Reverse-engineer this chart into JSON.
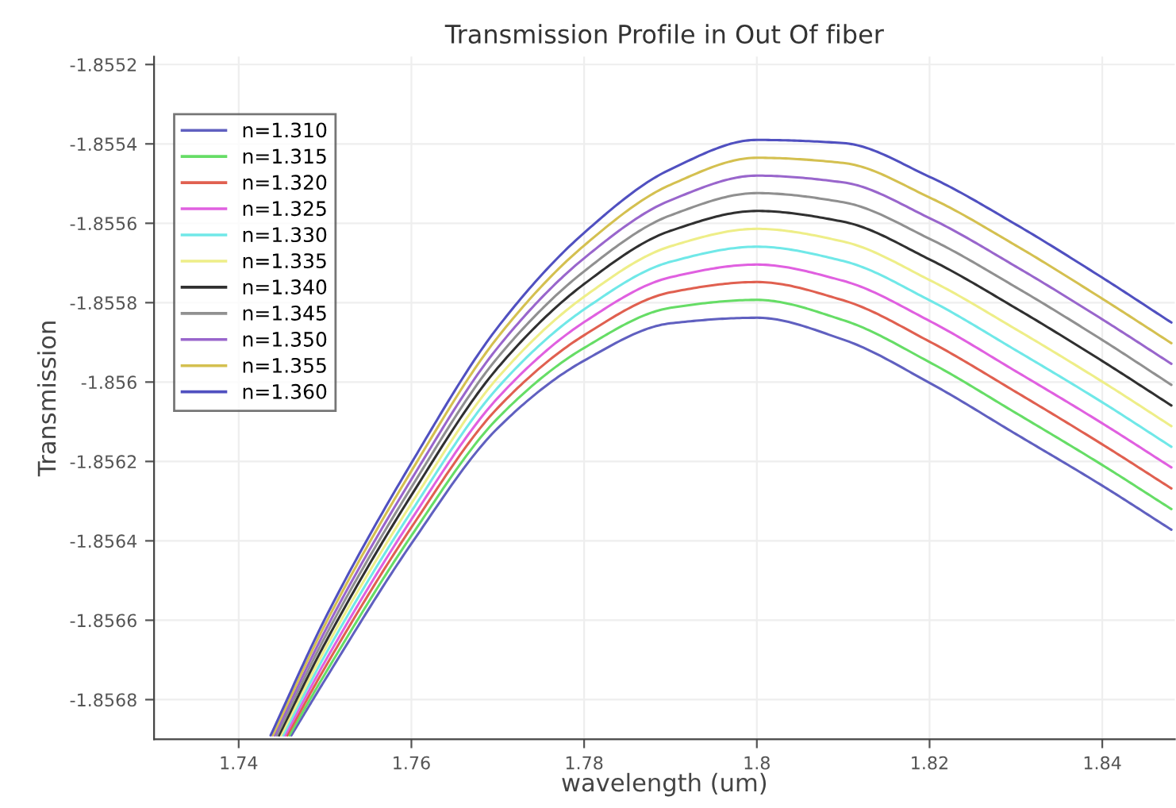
{
  "chart_data": {
    "type": "line",
    "title": "Transmission Profile in Out Of fiber",
    "xlabel": "wavelength (um)",
    "ylabel": "Transmission",
    "xlim": [
      1.7302,
      1.8484
    ],
    "xticks": [
      1.74,
      1.76,
      1.78,
      1.8,
      1.82,
      1.84
    ],
    "ylim": [
      -1.8569,
      -1.85518
    ],
    "yticks": [
      -1.8552,
      -1.8554,
      -1.8556,
      -1.8558,
      -1.856,
      -1.8562,
      -1.8564,
      -1.8566,
      -1.8568
    ],
    "grid": true,
    "legend": "top left",
    "line_style": "solid",
    "marker": "none",
    "series": [
      {
        "name": "n=1.310",
        "color": "#6060c0",
        "x": [
          1.7461,
          1.75,
          1.76,
          1.77,
          1.78,
          1.79,
          1.8,
          1.81,
          1.82,
          1.83,
          1.84,
          1.848
        ],
        "values": [
          -1.85689,
          -1.85675,
          -1.856407,
          -1.856116,
          -1.855946,
          -1.855852,
          -1.855838,
          -1.855893,
          -1.856002,
          -1.856131,
          -1.856261,
          -1.856372
        ]
      },
      {
        "name": "n=1.315",
        "color": "#66dd66",
        "x": [
          1.74586,
          1.75,
          1.76,
          1.77,
          1.78,
          1.79,
          1.8,
          1.81,
          1.82,
          1.83,
          1.84,
          1.848
        ],
        "values": [
          -1.85689,
          -1.856735,
          -1.856387,
          -1.856091,
          -1.855914,
          -1.855813,
          -1.855793,
          -1.855844,
          -1.85595,
          -1.856078,
          -1.856209,
          -1.85632
        ]
      },
      {
        "name": "n=1.320",
        "color": "#e06050",
        "x": [
          1.74562,
          1.75,
          1.76,
          1.77,
          1.78,
          1.79,
          1.8,
          1.81,
          1.82,
          1.83,
          1.84,
          1.848
        ],
        "values": [
          -1.85689,
          -1.856719,
          -1.856366,
          -1.856065,
          -1.855882,
          -1.855774,
          -1.855748,
          -1.855794,
          -1.855898,
          -1.856025,
          -1.856157,
          -1.856268
        ]
      },
      {
        "name": "n=1.325",
        "color": "#e060e0",
        "x": [
          1.74538,
          1.75,
          1.76,
          1.77,
          1.78,
          1.79,
          1.8,
          1.81,
          1.82,
          1.83,
          1.84,
          1.848
        ],
        "values": [
          -1.85689,
          -1.856704,
          -1.856346,
          -1.85604,
          -1.855849,
          -1.855736,
          -1.855704,
          -1.855745,
          -1.855846,
          -1.855973,
          -1.856104,
          -1.856215
        ]
      },
      {
        "name": "n=1.330",
        "color": "#70e8e8",
        "x": [
          1.74514,
          1.75,
          1.76,
          1.77,
          1.78,
          1.79,
          1.8,
          1.81,
          1.82,
          1.83,
          1.84,
          1.848
        ],
        "values": [
          -1.85689,
          -1.856688,
          -1.856326,
          -1.856014,
          -1.855817,
          -1.855697,
          -1.855659,
          -1.855695,
          -1.855794,
          -1.85592,
          -1.856051,
          -1.856163
        ]
      },
      {
        "name": "n=1.335",
        "color": "#eeee88",
        "x": [
          1.7449,
          1.75,
          1.76,
          1.77,
          1.78,
          1.79,
          1.8,
          1.81,
          1.82,
          1.83,
          1.84,
          1.848
        ],
        "values": [
          -1.85689,
          -1.856673,
          -1.856306,
          -1.855989,
          -1.855785,
          -1.855658,
          -1.855614,
          -1.855646,
          -1.855743,
          -1.855867,
          -1.855999,
          -1.856111
        ]
      },
      {
        "name": "n=1.340",
        "color": "#303030",
        "x": [
          1.74466,
          1.75,
          1.76,
          1.77,
          1.78,
          1.79,
          1.8,
          1.81,
          1.82,
          1.83,
          1.84,
          1.848
        ],
        "values": [
          -1.85689,
          -1.856658,
          -1.856285,
          -1.855964,
          -1.855753,
          -1.855619,
          -1.855569,
          -1.855596,
          -1.855691,
          -1.855814,
          -1.855947,
          -1.856059
        ]
      },
      {
        "name": "n=1.345",
        "color": "#909090",
        "x": [
          1.74442,
          1.75,
          1.76,
          1.77,
          1.78,
          1.79,
          1.8,
          1.81,
          1.82,
          1.83,
          1.84,
          1.848
        ],
        "values": [
          -1.85689,
          -1.856642,
          -1.856265,
          -1.855938,
          -1.855721,
          -1.85558,
          -1.855524,
          -1.855547,
          -1.855639,
          -1.855761,
          -1.855894,
          -1.856007
        ]
      },
      {
        "name": "n=1.350",
        "color": "#9966cc",
        "x": [
          1.74418,
          1.75,
          1.76,
          1.77,
          1.78,
          1.79,
          1.8,
          1.81,
          1.82,
          1.83,
          1.84,
          1.848
        ],
        "values": [
          -1.85689,
          -1.856627,
          -1.856245,
          -1.855913,
          -1.855688,
          -1.855542,
          -1.85548,
          -1.855497,
          -1.855587,
          -1.855709,
          -1.855842,
          -1.855954
        ]
      },
      {
        "name": "n=1.355",
        "color": "#d4c050",
        "x": [
          1.74394,
          1.75,
          1.76,
          1.77,
          1.78,
          1.79,
          1.8,
          1.81,
          1.82,
          1.83,
          1.84,
          1.848
        ],
        "values": [
          -1.85689,
          -1.856611,
          -1.856224,
          -1.855887,
          -1.855656,
          -1.855503,
          -1.855435,
          -1.855448,
          -1.855535,
          -1.855656,
          -1.85579,
          -1.855902
        ]
      },
      {
        "name": "n=1.360",
        "color": "#5050c0",
        "x": [
          1.7437,
          1.75,
          1.76,
          1.77,
          1.78,
          1.79,
          1.8,
          1.81,
          1.82,
          1.83,
          1.84,
          1.848
        ],
        "values": [
          -1.85689,
          -1.856596,
          -1.856204,
          -1.855862,
          -1.855624,
          -1.855464,
          -1.85539,
          -1.855398,
          -1.855483,
          -1.855603,
          -1.855737,
          -1.85585
        ]
      }
    ]
  }
}
